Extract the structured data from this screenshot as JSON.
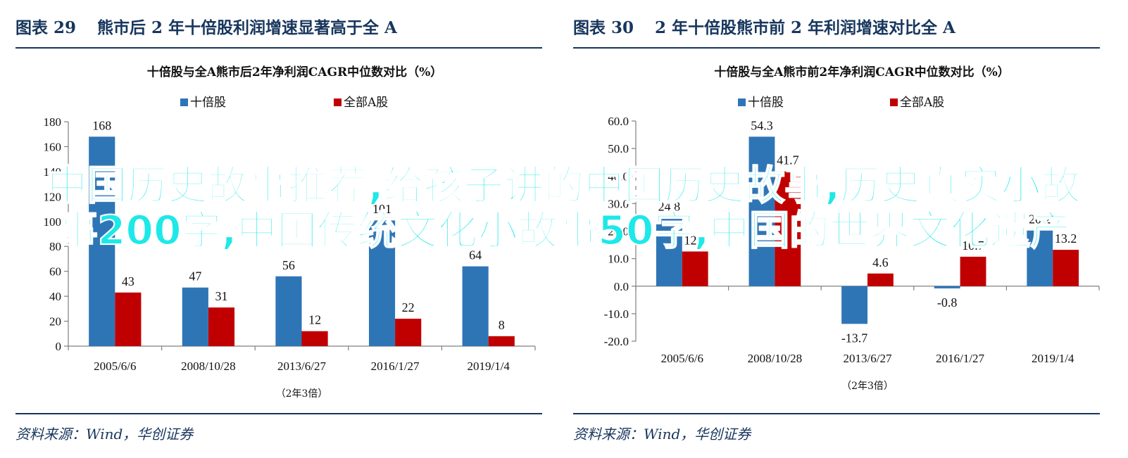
{
  "figures": [
    {
      "fig_label": "图表 29",
      "fig_heading": "熊市后 2 年十倍股利润增速显著高于全 A",
      "source": "资料来源：Wind，华创证券",
      "chart_data": {
        "type": "bar",
        "title": "十倍股与全A熊市后2年净利润CAGR中位数对比（%）",
        "categories": [
          "2005/6/6",
          "2008/10/28",
          "2013/6/27",
          "2016/1/27",
          "2019/1/4"
        ],
        "note": "（2年3倍）",
        "series": [
          {
            "name": "十倍股",
            "color": "#2e75b6",
            "values": [
              168,
              47,
              56,
              101,
              64
            ],
            "labels": [
              "168",
              "47",
              "56",
              "101",
              "64"
            ]
          },
          {
            "name": "全部A股",
            "color": "#c00000",
            "values": [
              43,
              31,
              12,
              22,
              8
            ],
            "labels": [
              "43",
              "31",
              "12",
              "22",
              "8"
            ]
          }
        ],
        "ylim": [
          0,
          180
        ],
        "yticks": [
          0,
          20,
          40,
          60,
          80,
          100,
          120,
          140,
          160,
          180
        ],
        "ytick_labels": [
          "0",
          "20",
          "40",
          "60",
          "80",
          "100",
          "120",
          "140",
          "160",
          "180"
        ],
        "grid": false,
        "legend_position": "top"
      }
    },
    {
      "fig_label": "图表 30",
      "fig_heading": "2 年十倍股熊市前 2 年利润增速对比全 A",
      "source": "资料来源：Wind，华创证券",
      "chart_data": {
        "type": "bar",
        "title": "十倍股与全A熊市前2年净利润CAGR中位数对比（%）",
        "categories": [
          "2005/6/6",
          "2008/10/28",
          "2013/6/27",
          "2016/1/27",
          "2019/1/4"
        ],
        "note": "（2年3倍）",
        "series": [
          {
            "name": "十倍股",
            "color": "#2e75b6",
            "values": [
              24.8,
              54.3,
              -13.7,
              -0.8,
              20.2
            ],
            "labels": [
              "24.8",
              "54.3",
              "-13.7",
              "-0.8",
              "20.2"
            ]
          },
          {
            "name": "全部A股",
            "color": "#c00000",
            "values": [
              12.6,
              41.7,
              4.6,
              10.7,
              13.2
            ],
            "labels": [
              "12.6",
              "41.7",
              "4.6",
              "10.7",
              "13.2"
            ]
          }
        ],
        "ylim": [
          -20,
          60
        ],
        "yticks": [
          -20,
          -10,
          0,
          10,
          20,
          30,
          40,
          50,
          60
        ],
        "ytick_labels": [
          "-20.0",
          "-10.0",
          "0.0",
          "10.0",
          "20.0",
          "30.0",
          "40.0",
          "50.0",
          "60.0"
        ],
        "grid": false,
        "legend_position": "top"
      }
    }
  ],
  "overlay_text": "中国历史故事推荐,给孩子讲的中国历史故事,历史真实小故事200字,中国传统文化小故事50字,中国的世界文化遗产"
}
